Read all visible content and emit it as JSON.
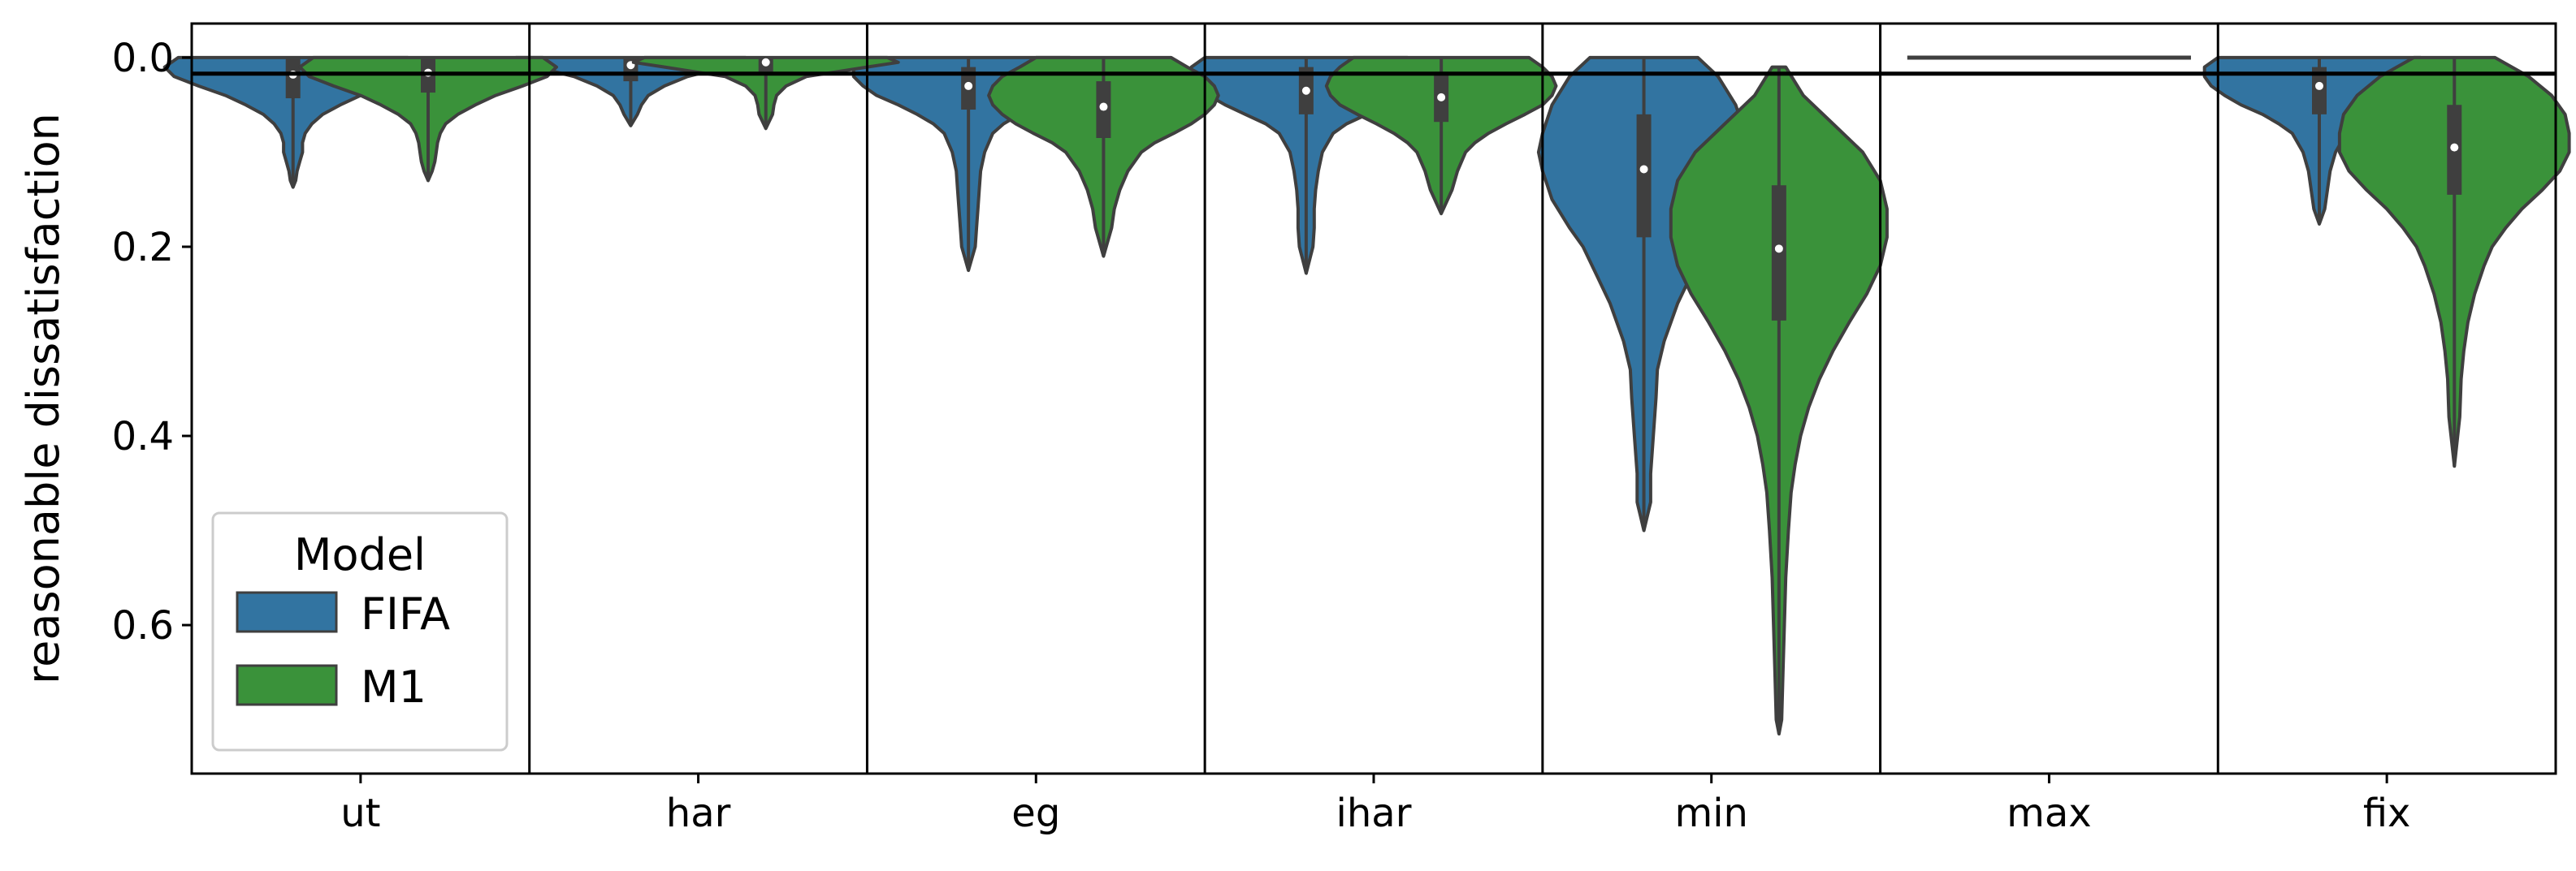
{
  "chart_data": {
    "type": "violin",
    "categories": [
      "ut",
      "har",
      "eg",
      "ihar",
      "min",
      "max",
      "fix"
    ],
    "ylabel": "reasonable dissatisfaction",
    "xlabel": "",
    "ylim": [
      0.757,
      -0.036
    ],
    "y_inverted": true,
    "yticks": [
      0.0,
      0.2,
      0.4,
      0.6
    ],
    "ytick_labels": [
      "0.0",
      "0.2",
      "0.4",
      "0.6"
    ],
    "reference_line_y": 0.017,
    "legend": {
      "title": "Model",
      "position": "lower-left",
      "entries": [
        {
          "label": "FIFA",
          "color": "#3274a1"
        },
        {
          "label": "M1",
          "color": "#3a923a"
        }
      ]
    },
    "series": [
      {
        "name": "FIFA",
        "color": "#3274a1",
        "violins": [
          {
            "category": "ut",
            "min": 0.0,
            "max": 0.137,
            "q1": 0.0,
            "median": 0.018,
            "q3": 0.043,
            "profile": [
              [
                0.0,
                0.85
              ],
              [
                0.01,
                0.95
              ],
              [
                0.02,
                0.88
              ],
              [
                0.03,
                0.7
              ],
              [
                0.04,
                0.5
              ],
              [
                0.05,
                0.35
              ],
              [
                0.06,
                0.22
              ],
              [
                0.07,
                0.14
              ],
              [
                0.08,
                0.09
              ],
              [
                0.09,
                0.07
              ],
              [
                0.1,
                0.07
              ],
              [
                0.11,
                0.05
              ],
              [
                0.12,
                0.03
              ],
              [
                0.13,
                0.02
              ],
              [
                0.137,
                0.0
              ]
            ]
          },
          {
            "category": "har",
            "min": 0.0,
            "max": 0.072,
            "q1": 0.0,
            "median": 0.008,
            "q3": 0.025,
            "profile": [
              [
                0.0,
                0.85
              ],
              [
                0.005,
                0.95
              ],
              [
                0.01,
                0.7
              ],
              [
                0.02,
                0.42
              ],
              [
                0.03,
                0.25
              ],
              [
                0.04,
                0.13
              ],
              [
                0.05,
                0.08
              ],
              [
                0.06,
                0.05
              ],
              [
                0.072,
                0.0
              ]
            ]
          },
          {
            "category": "eg",
            "min": 0.0,
            "max": 0.225,
            "q1": 0.01,
            "median": 0.03,
            "q3": 0.055,
            "profile": [
              [
                0.0,
                0.75
              ],
              [
                0.01,
                0.85
              ],
              [
                0.02,
                0.85
              ],
              [
                0.03,
                0.78
              ],
              [
                0.04,
                0.68
              ],
              [
                0.05,
                0.52
              ],
              [
                0.06,
                0.38
              ],
              [
                0.07,
                0.26
              ],
              [
                0.08,
                0.18
              ],
              [
                0.1,
                0.12
              ],
              [
                0.12,
                0.09
              ],
              [
                0.14,
                0.08
              ],
              [
                0.16,
                0.07
              ],
              [
                0.18,
                0.06
              ],
              [
                0.2,
                0.05
              ],
              [
                0.225,
                0.0
              ]
            ]
          },
          {
            "category": "ihar",
            "min": 0.0,
            "max": 0.228,
            "q1": 0.01,
            "median": 0.035,
            "q3": 0.06,
            "profile": [
              [
                0.0,
                0.75
              ],
              [
                0.01,
                0.85
              ],
              [
                0.02,
                0.85
              ],
              [
                0.03,
                0.8
              ],
              [
                0.04,
                0.72
              ],
              [
                0.05,
                0.6
              ],
              [
                0.06,
                0.45
              ],
              [
                0.07,
                0.3
              ],
              [
                0.08,
                0.2
              ],
              [
                0.1,
                0.12
              ],
              [
                0.12,
                0.09
              ],
              [
                0.14,
                0.07
              ],
              [
                0.16,
                0.06
              ],
              [
                0.18,
                0.06
              ],
              [
                0.2,
                0.05
              ],
              [
                0.228,
                0.0
              ]
            ]
          },
          {
            "category": "min",
            "min": 0.0,
            "max": 0.5,
            "q1": 0.06,
            "median": 0.118,
            "q3": 0.19,
            "profile": [
              [
                0.0,
                0.4
              ],
              [
                0.02,
                0.55
              ],
              [
                0.05,
                0.68
              ],
              [
                0.08,
                0.75
              ],
              [
                0.1,
                0.78
              ],
              [
                0.12,
                0.75
              ],
              [
                0.15,
                0.68
              ],
              [
                0.18,
                0.55
              ],
              [
                0.2,
                0.45
              ],
              [
                0.23,
                0.35
              ],
              [
                0.26,
                0.25
              ],
              [
                0.3,
                0.15
              ],
              [
                0.33,
                0.1
              ],
              [
                0.36,
                0.09
              ],
              [
                0.4,
                0.07
              ],
              [
                0.44,
                0.05
              ],
              [
                0.47,
                0.05
              ],
              [
                0.5,
                0.0
              ]
            ]
          },
          {
            "category": "max",
            "min": 0.0,
            "max": 0.0,
            "q1": 0.0,
            "median": 0.0,
            "q3": 0.0,
            "profile": [
              [
                0.0,
                0.0
              ]
            ]
          },
          {
            "category": "fix",
            "min": 0.0,
            "max": 0.176,
            "q1": 0.01,
            "median": 0.03,
            "q3": 0.06,
            "profile": [
              [
                0.0,
                0.75
              ],
              [
                0.01,
                0.85
              ],
              [
                0.02,
                0.85
              ],
              [
                0.03,
                0.8
              ],
              [
                0.04,
                0.7
              ],
              [
                0.05,
                0.58
              ],
              [
                0.06,
                0.42
              ],
              [
                0.07,
                0.3
              ],
              [
                0.08,
                0.2
              ],
              [
                0.1,
                0.12
              ],
              [
                0.12,
                0.08
              ],
              [
                0.14,
                0.06
              ],
              [
                0.16,
                0.04
              ],
              [
                0.176,
                0.0
              ]
            ]
          }
        ]
      },
      {
        "name": "M1",
        "color": "#3a923a",
        "violins": [
          {
            "category": "ut",
            "min": 0.0,
            "max": 0.13,
            "q1": 0.0,
            "median": 0.016,
            "q3": 0.037,
            "profile": [
              [
                0.0,
                0.85
              ],
              [
                0.01,
                0.95
              ],
              [
                0.02,
                0.88
              ],
              [
                0.03,
                0.7
              ],
              [
                0.04,
                0.5
              ],
              [
                0.05,
                0.35
              ],
              [
                0.06,
                0.22
              ],
              [
                0.07,
                0.13
              ],
              [
                0.08,
                0.09
              ],
              [
                0.09,
                0.07
              ],
              [
                0.1,
                0.06
              ],
              [
                0.11,
                0.05
              ],
              [
                0.12,
                0.03
              ],
              [
                0.13,
                0.0
              ]
            ]
          },
          {
            "category": "har",
            "min": 0.0,
            "max": 0.075,
            "q1": 0.0,
            "median": 0.005,
            "q3": 0.015,
            "profile": [
              [
                0.0,
                0.9
              ],
              [
                0.005,
                0.98
              ],
              [
                0.01,
                0.75
              ],
              [
                0.02,
                0.3
              ],
              [
                0.03,
                0.15
              ],
              [
                0.04,
                0.08
              ],
              [
                0.05,
                0.06
              ],
              [
                0.06,
                0.05
              ],
              [
                0.075,
                0.0
              ]
            ]
          },
          {
            "category": "eg",
            "min": 0.0,
            "max": 0.21,
            "q1": 0.025,
            "median": 0.052,
            "q3": 0.085,
            "profile": [
              [
                0.0,
                0.5
              ],
              [
                0.01,
                0.62
              ],
              [
                0.02,
                0.75
              ],
              [
                0.03,
                0.82
              ],
              [
                0.04,
                0.85
              ],
              [
                0.05,
                0.82
              ],
              [
                0.06,
                0.75
              ],
              [
                0.07,
                0.65
              ],
              [
                0.08,
                0.52
              ],
              [
                0.09,
                0.38
              ],
              [
                0.1,
                0.28
              ],
              [
                0.12,
                0.18
              ],
              [
                0.14,
                0.12
              ],
              [
                0.16,
                0.08
              ],
              [
                0.18,
                0.06
              ],
              [
                0.21,
                0.0
              ]
            ]
          },
          {
            "category": "ihar",
            "min": 0.0,
            "max": 0.165,
            "q1": 0.015,
            "median": 0.042,
            "q3": 0.068,
            "profile": [
              [
                0.0,
                0.65
              ],
              [
                0.01,
                0.75
              ],
              [
                0.02,
                0.82
              ],
              [
                0.03,
                0.85
              ],
              [
                0.04,
                0.82
              ],
              [
                0.05,
                0.75
              ],
              [
                0.06,
                0.62
              ],
              [
                0.07,
                0.48
              ],
              [
                0.08,
                0.35
              ],
              [
                0.09,
                0.25
              ],
              [
                0.1,
                0.18
              ],
              [
                0.12,
                0.12
              ],
              [
                0.14,
                0.08
              ],
              [
                0.165,
                0.0
              ]
            ]
          },
          {
            "category": "min",
            "min": 0.01,
            "max": 0.715,
            "q1": 0.135,
            "median": 0.202,
            "q3": 0.278,
            "profile": [
              [
                0.01,
                0.05
              ],
              [
                0.04,
                0.18
              ],
              [
                0.07,
                0.4
              ],
              [
                0.1,
                0.62
              ],
              [
                0.13,
                0.75
              ],
              [
                0.16,
                0.8
              ],
              [
                0.19,
                0.8
              ],
              [
                0.22,
                0.75
              ],
              [
                0.25,
                0.65
              ],
              [
                0.28,
                0.52
              ],
              [
                0.31,
                0.4
              ],
              [
                0.34,
                0.3
              ],
              [
                0.37,
                0.22
              ],
              [
                0.4,
                0.16
              ],
              [
                0.43,
                0.12
              ],
              [
                0.46,
                0.09
              ],
              [
                0.5,
                0.07
              ],
              [
                0.55,
                0.05
              ],
              [
                0.6,
                0.04
              ],
              [
                0.65,
                0.03
              ],
              [
                0.7,
                0.02
              ],
              [
                0.715,
                0.0
              ]
            ]
          },
          {
            "category": "max",
            "min": 0.0,
            "max": 0.0,
            "q1": 0.0,
            "median": 0.0,
            "q3": 0.0,
            "profile": [
              [
                0.0,
                0.0
              ]
            ]
          },
          {
            "category": "fix",
            "min": 0.0,
            "max": 0.432,
            "q1": 0.05,
            "median": 0.095,
            "q3": 0.145,
            "profile": [
              [
                0.0,
                0.3
              ],
              [
                0.02,
                0.55
              ],
              [
                0.04,
                0.72
              ],
              [
                0.06,
                0.82
              ],
              [
                0.08,
                0.85
              ],
              [
                0.1,
                0.85
              ],
              [
                0.12,
                0.78
              ],
              [
                0.14,
                0.65
              ],
              [
                0.16,
                0.5
              ],
              [
                0.18,
                0.38
              ],
              [
                0.2,
                0.28
              ],
              [
                0.22,
                0.22
              ],
              [
                0.25,
                0.15
              ],
              [
                0.28,
                0.1
              ],
              [
                0.31,
                0.07
              ],
              [
                0.34,
                0.05
              ],
              [
                0.38,
                0.04
              ],
              [
                0.432,
                0.0
              ]
            ]
          }
        ]
      }
    ],
    "max_line": {
      "category": "max",
      "y": 0.0
    }
  }
}
